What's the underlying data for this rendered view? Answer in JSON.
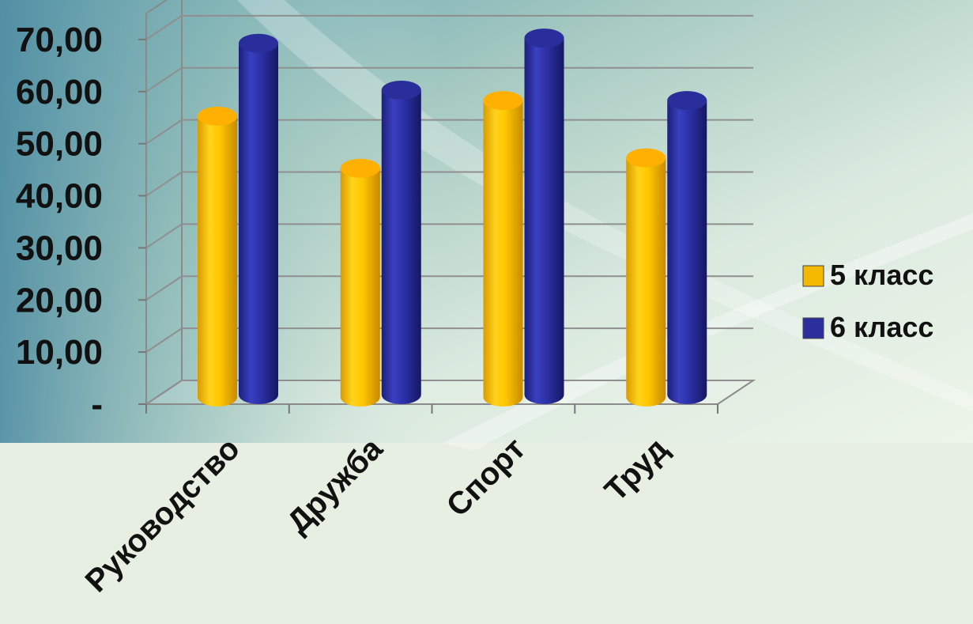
{
  "chart_data": {
    "type": "bar",
    "categories": [
      "Руководство",
      "Дружба",
      "Спорт",
      "Труд"
    ],
    "series": [
      {
        "name": "5 класс",
        "values": [
          53,
          43,
          56,
          45
        ],
        "color": "#f5b800"
      },
      {
        "name": "6 класс",
        "values": [
          67,
          58,
          68,
          56
        ],
        "color": "#2b2f9e"
      }
    ],
    "y_ticks": [
      "-",
      "10,00",
      "20,00",
      "30,00",
      "40,00",
      "50,00",
      "60,00",
      "70,00"
    ],
    "ylim": [
      0,
      75
    ],
    "grid": true,
    "legend_position": "right",
    "style": "3d-cylinder"
  }
}
